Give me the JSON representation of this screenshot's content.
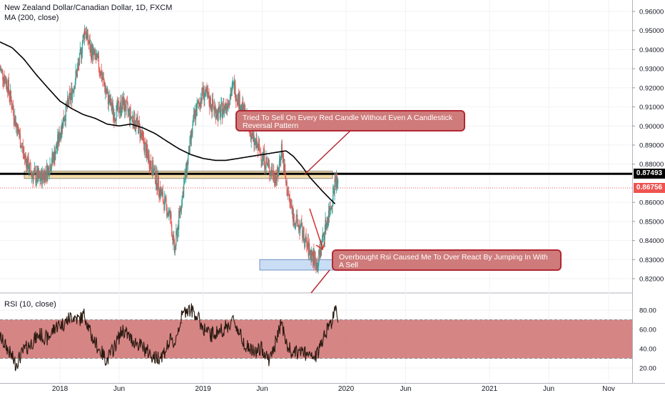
{
  "header": {
    "title": "New Zealand Dollar/Canadian Dollar, 1D, FXCM",
    "ma_label": "MA (200, close)",
    "rsi_label": "RSI (10, close)"
  },
  "price_tags": {
    "resistance": "0.87493",
    "last": "0.86756"
  },
  "annotations": {
    "callout_1": "Tried To Sell On Every Red Candle Without Even A Candlestick Reversal Pattern",
    "callout_2": "Overbought Rsi Caused Me To Over React By Jumping In With A Sell"
  },
  "colors": {
    "up": "#26a69a",
    "down": "#ef5350",
    "ma": "#000000",
    "rsi_band": "#cf7070",
    "callout_bg": "#cf7b7b",
    "callout_border": "#b22833",
    "zone_fill": "#f2dba8",
    "buy_zone_fill": "#c9ddf5"
  },
  "chart_data": [
    {
      "type": "candlestick",
      "ylim": [
        0.815,
        0.965
      ],
      "y_ticks": [
        "0.96000",
        "0.95000",
        "0.94000",
        "0.93000",
        "0.92000",
        "0.91000",
        "0.90000",
        "0.89000",
        "0.88000",
        "0.86000",
        "0.85000",
        "0.84000",
        "0.83000",
        "0.82000"
      ],
      "x_ticks": [
        "2018",
        "Jun",
        "2019",
        "Jun",
        "2020",
        "Jun",
        "2021",
        "Jun",
        "Nov"
      ],
      "resistance_level": 0.87493,
      "last_price": 0.86756,
      "price_path": [
        [
          "2017-08-01",
          0.93
        ],
        [
          "2017-08-20",
          0.922
        ],
        [
          "2017-09-10",
          0.902
        ],
        [
          "2017-10-01",
          0.885
        ],
        [
          "2017-10-20",
          0.875
        ],
        [
          "2017-11-10",
          0.872
        ],
        [
          "2017-12-01",
          0.877
        ],
        [
          "2017-12-20",
          0.886
        ],
        [
          "2018-01-10",
          0.904
        ],
        [
          "2018-02-01",
          0.918
        ],
        [
          "2018-02-20",
          0.934
        ],
        [
          "2018-03-05",
          0.951
        ],
        [
          "2018-03-20",
          0.94
        ],
        [
          "2018-04-10",
          0.932
        ],
        [
          "2018-05-01",
          0.916
        ],
        [
          "2018-05-20",
          0.906
        ],
        [
          "2018-06-10",
          0.912
        ],
        [
          "2018-07-01",
          0.905
        ],
        [
          "2018-07-20",
          0.9
        ],
        [
          "2018-08-10",
          0.886
        ],
        [
          "2018-09-01",
          0.874
        ],
        [
          "2018-09-20",
          0.862
        ],
        [
          "2018-10-10",
          0.852
        ],
        [
          "2018-10-20",
          0.834
        ],
        [
          "2018-11-05",
          0.858
        ],
        [
          "2018-11-20",
          0.878
        ],
        [
          "2018-12-10",
          0.905
        ],
        [
          "2019-01-01",
          0.918
        ],
        [
          "2019-01-20",
          0.912
        ],
        [
          "2019-02-10",
          0.906
        ],
        [
          "2019-03-01",
          0.911
        ],
        [
          "2019-03-20",
          0.921
        ],
        [
          "2019-04-05",
          0.912
        ],
        [
          "2019-04-20",
          0.904
        ],
        [
          "2019-05-10",
          0.892
        ],
        [
          "2019-06-01",
          0.885
        ],
        [
          "2019-06-20",
          0.877
        ],
        [
          "2019-07-10",
          0.873
        ],
        [
          "2019-07-20",
          0.889
        ],
        [
          "2019-08-01",
          0.869
        ],
        [
          "2019-08-20",
          0.852
        ],
        [
          "2019-09-10",
          0.845
        ],
        [
          "2019-09-25",
          0.836
        ],
        [
          "2019-10-10",
          0.831
        ],
        [
          "2019-10-20",
          0.827
        ],
        [
          "2019-11-01",
          0.84
        ],
        [
          "2019-11-15",
          0.852
        ],
        [
          "2019-11-25",
          0.86
        ],
        [
          "2019-12-05",
          0.873
        ],
        [
          "2019-12-12",
          0.8676
        ]
      ],
      "ma_200": [
        [
          "2017-08-01",
          0.944
        ],
        [
          "2017-09-01",
          0.941
        ],
        [
          "2017-10-01",
          0.935
        ],
        [
          "2017-11-01",
          0.927
        ],
        [
          "2017-12-01",
          0.92
        ],
        [
          "2018-01-01",
          0.913
        ],
        [
          "2018-02-01",
          0.909
        ],
        [
          "2018-03-01",
          0.906
        ],
        [
          "2018-04-01",
          0.904
        ],
        [
          "2018-05-01",
          0.901
        ],
        [
          "2018-06-01",
          0.9
        ],
        [
          "2018-07-01",
          0.901
        ],
        [
          "2018-08-01",
          0.899
        ],
        [
          "2018-09-01",
          0.896
        ],
        [
          "2018-10-01",
          0.892
        ],
        [
          "2018-11-01",
          0.888
        ],
        [
          "2018-12-01",
          0.885
        ],
        [
          "2019-01-01",
          0.883
        ],
        [
          "2019-02-01",
          0.882
        ],
        [
          "2019-03-01",
          0.882
        ],
        [
          "2019-04-01",
          0.883
        ],
        [
          "2019-05-01",
          0.884
        ],
        [
          "2019-06-01",
          0.885
        ],
        [
          "2019-07-01",
          0.886
        ],
        [
          "2019-08-01",
          0.887
        ],
        [
          "2019-08-20",
          0.884
        ],
        [
          "2019-09-10",
          0.879
        ],
        [
          "2019-10-01",
          0.873
        ],
        [
          "2019-11-01",
          0.866
        ],
        [
          "2019-11-20",
          0.862
        ],
        [
          "2019-12-05",
          0.859
        ]
      ]
    },
    {
      "type": "line",
      "name": "RSI (10, close)",
      "ylim": [
        10,
        90
      ],
      "y_ticks": [
        "80.00",
        "60.00",
        "40.00",
        "20.00"
      ],
      "band": [
        30,
        70
      ],
      "rsi_path": [
        [
          "2017-08-01",
          52
        ],
        [
          "2017-08-20",
          40
        ],
        [
          "2017-09-10",
          24
        ],
        [
          "2017-10-01",
          38
        ],
        [
          "2017-10-20",
          46
        ],
        [
          "2017-11-10",
          55
        ],
        [
          "2017-12-01",
          50
        ],
        [
          "2017-12-20",
          63
        ],
        [
          "2018-01-10",
          66
        ],
        [
          "2018-02-01",
          74
        ],
        [
          "2018-02-20",
          70
        ],
        [
          "2018-03-05",
          76
        ],
        [
          "2018-03-20",
          55
        ],
        [
          "2018-04-10",
          40
        ],
        [
          "2018-05-01",
          28
        ],
        [
          "2018-05-20",
          42
        ],
        [
          "2018-06-10",
          60
        ],
        [
          "2018-07-01",
          50
        ],
        [
          "2018-07-20",
          45
        ],
        [
          "2018-08-10",
          38
        ],
        [
          "2018-09-01",
          30
        ],
        [
          "2018-09-20",
          34
        ],
        [
          "2018-10-10",
          48
        ],
        [
          "2018-10-20",
          45
        ],
        [
          "2018-11-05",
          70
        ],
        [
          "2018-11-20",
          82
        ],
        [
          "2018-12-10",
          78
        ],
        [
          "2019-01-01",
          62
        ],
        [
          "2019-01-20",
          54
        ],
        [
          "2019-02-10",
          58
        ],
        [
          "2019-03-01",
          62
        ],
        [
          "2019-03-20",
          70
        ],
        [
          "2019-04-05",
          55
        ],
        [
          "2019-04-20",
          44
        ],
        [
          "2019-05-10",
          36
        ],
        [
          "2019-06-01",
          40
        ],
        [
          "2019-06-20",
          28
        ],
        [
          "2019-07-10",
          52
        ],
        [
          "2019-07-20",
          70
        ],
        [
          "2019-08-01",
          44
        ],
        [
          "2019-08-20",
          34
        ],
        [
          "2019-09-10",
          38
        ],
        [
          "2019-09-25",
          32
        ],
        [
          "2019-10-10",
          30
        ],
        [
          "2019-10-20",
          34
        ],
        [
          "2019-11-01",
          50
        ],
        [
          "2019-11-15",
          62
        ],
        [
          "2019-11-25",
          68
        ],
        [
          "2019-12-05",
          80
        ],
        [
          "2019-12-12",
          72
        ]
      ]
    }
  ]
}
